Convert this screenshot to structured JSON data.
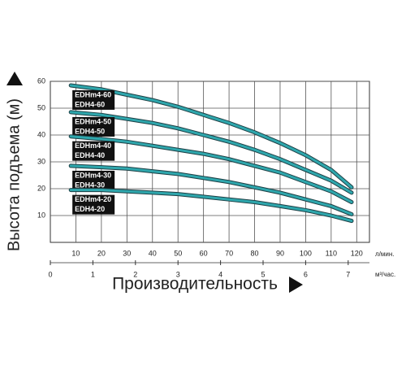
{
  "chart_data": {
    "type": "line",
    "y_label": "Высота подъема (м)",
    "x_label": "Производительность",
    "x_unit": "л/мин.",
    "x2_unit": "м³/час.",
    "x": [
      8,
      20,
      30,
      40,
      50,
      60,
      70,
      80,
      90,
      100,
      110,
      118
    ],
    "xlim": [
      0,
      125
    ],
    "xticks": [
      10,
      20,
      30,
      40,
      50,
      60,
      70,
      80,
      90,
      100,
      110,
      120
    ],
    "x2lim": [
      0,
      7.5
    ],
    "x2ticks": [
      0,
      1,
      2,
      3,
      4,
      5,
      6,
      7
    ],
    "ylim": [
      0,
      60
    ],
    "yticks": [
      10,
      20,
      30,
      40,
      50,
      60
    ],
    "grid": true,
    "series": [
      {
        "names": [
          "EDHm4-60",
          "EDH4-60"
        ],
        "color": "#2fa7ad",
        "values": [
          58.5,
          57,
          55,
          53,
          50.5,
          47.5,
          44.5,
          41,
          37,
          32.5,
          27,
          20.5
        ]
      },
      {
        "names": [
          "EDHm4-50",
          "EDH4-50"
        ],
        "color": "#2fa7ad",
        "values": [
          48.5,
          47.5,
          46,
          44.5,
          42.5,
          40,
          37.5,
          34.5,
          31,
          27,
          23,
          18.5
        ]
      },
      {
        "names": [
          "EDHm4-40",
          "EDH4-40"
        ],
        "color": "#2fa7ad",
        "values": [
          39.5,
          38.5,
          37.5,
          36,
          34.5,
          33,
          31,
          28.5,
          26,
          22.5,
          19,
          15
        ]
      },
      {
        "names": [
          "EDHm4-30",
          "EDH4-30"
        ],
        "color": "#2fa7ad",
        "values": [
          28.5,
          28,
          27.5,
          26.5,
          25.5,
          24,
          22.5,
          20.5,
          18.5,
          16,
          13.5,
          10.5
        ]
      },
      {
        "names": [
          "EDHm4-20",
          "EDH4-20"
        ],
        "color": "#2fa7ad",
        "values": [
          19.5,
          19.5,
          19,
          18.5,
          18,
          17,
          16,
          15,
          13.5,
          12,
          10,
          8
        ]
      }
    ]
  }
}
